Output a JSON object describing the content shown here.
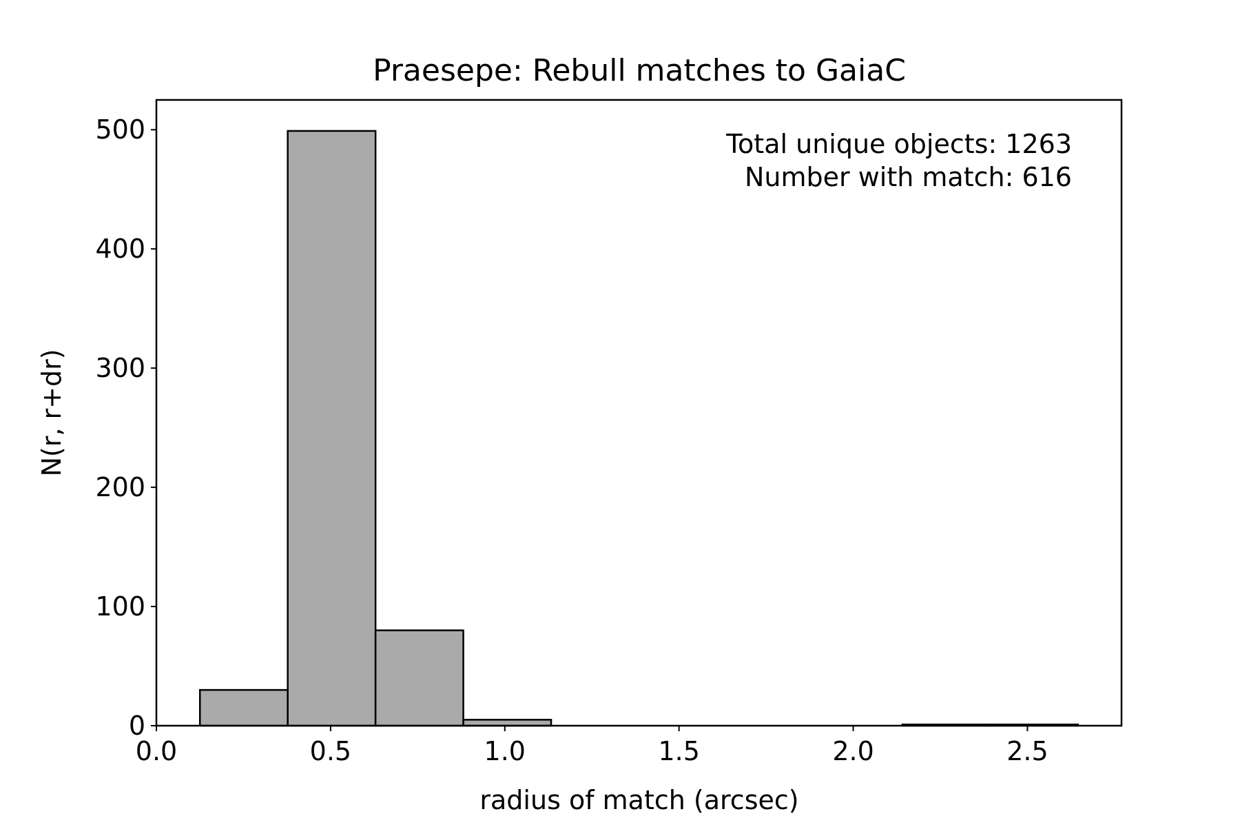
{
  "chart_data": {
    "type": "bar",
    "title": "Praesepe: Rebull matches to GaiaC",
    "xlabel": "radius of match (arcsec)",
    "ylabel": "N(r, r+dr)",
    "xlim": [
      0.0,
      2.77
    ],
    "ylim": [
      0,
      525
    ],
    "xticks": [
      0.0,
      0.5,
      1.0,
      1.5,
      2.0,
      2.5
    ],
    "xtick_labels": [
      "0.0",
      "0.5",
      "1.0",
      "1.5",
      "2.0",
      "2.5"
    ],
    "yticks": [
      0,
      100,
      200,
      300,
      400,
      500
    ],
    "ytick_labels": [
      "0",
      "100",
      "200",
      "300",
      "400",
      "500"
    ],
    "bins": [
      {
        "x0": 0.125,
        "x1": 0.377,
        "count": 30
      },
      {
        "x0": 0.377,
        "x1": 0.629,
        "count": 499
      },
      {
        "x0": 0.629,
        "x1": 0.881,
        "count": 80
      },
      {
        "x0": 0.881,
        "x1": 1.133,
        "count": 5
      },
      {
        "x0": 1.133,
        "x1": 1.385,
        "count": 0
      },
      {
        "x0": 1.385,
        "x1": 1.637,
        "count": 0
      },
      {
        "x0": 1.637,
        "x1": 1.889,
        "count": 0
      },
      {
        "x0": 1.889,
        "x1": 2.141,
        "count": 0
      },
      {
        "x0": 2.141,
        "x1": 2.393,
        "count": 1
      },
      {
        "x0": 2.393,
        "x1": 2.645,
        "count": 1
      }
    ],
    "bar_fill": "#aaaaaa",
    "bar_edge": "#000000",
    "grid": false,
    "annotations": [
      "Total unique objects: 1263",
      "Number with match: 616"
    ],
    "annotation_placement": "top-right"
  }
}
